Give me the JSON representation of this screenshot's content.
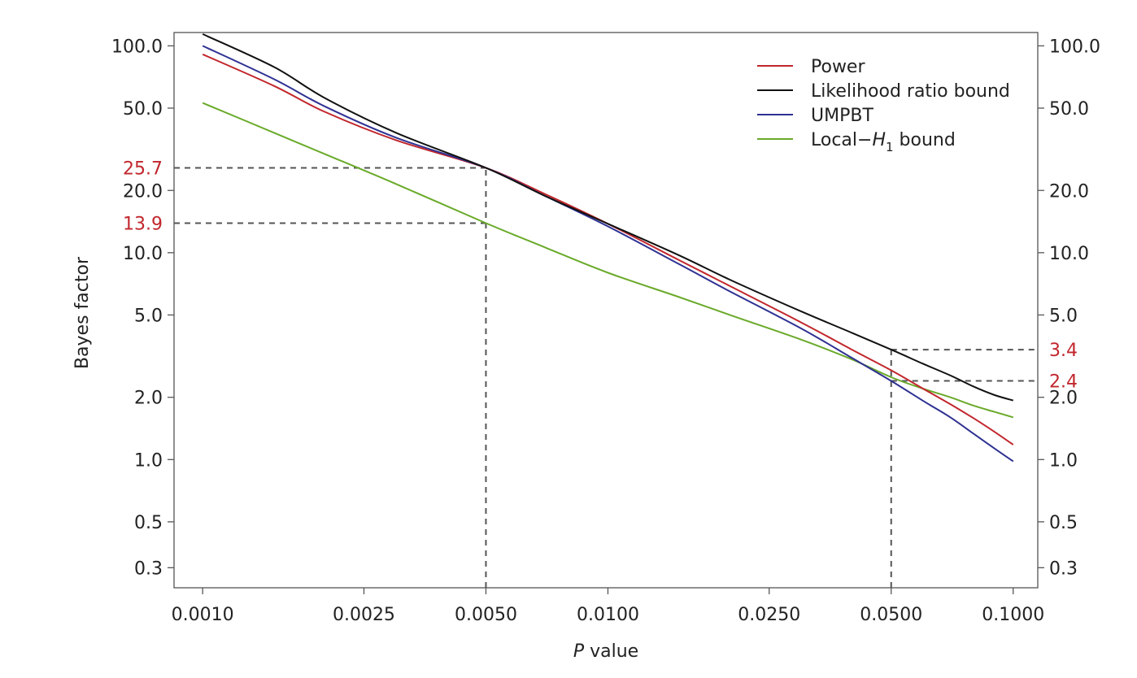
{
  "chart_data": {
    "type": "line",
    "title": "",
    "xlabel": {
      "italic": "P",
      "rest": " value"
    },
    "ylabel": "Bayes factor",
    "x_scale": "log",
    "y_scale": "log",
    "xlim": [
      0.00085,
      0.115
    ],
    "ylim": [
      0.24,
      116
    ],
    "x_ticks": [
      {
        "value": 0.001,
        "label": "0.0010"
      },
      {
        "value": 0.0025,
        "label": "0.0025"
      },
      {
        "value": 0.005,
        "label": "0.0050"
      },
      {
        "value": 0.01,
        "label": "0.0100"
      },
      {
        "value": 0.025,
        "label": "0.0250"
      },
      {
        "value": 0.05,
        "label": "0.0500"
      },
      {
        "value": 0.1,
        "label": "0.1000"
      }
    ],
    "y_ticks": [
      {
        "value": 0.3,
        "label": "0.3"
      },
      {
        "value": 0.5,
        "label": "0.5"
      },
      {
        "value": 1.0,
        "label": "1.0"
      },
      {
        "value": 2.0,
        "label": "2.0"
      },
      {
        "value": 5.0,
        "label": "5.0"
      },
      {
        "value": 10.0,
        "label": "10.0"
      },
      {
        "value": 20.0,
        "label": "20.0"
      },
      {
        "value": 50.0,
        "label": "50.0"
      },
      {
        "value": 100.0,
        "label": "100.0"
      }
    ],
    "legend_position": "top-right",
    "grid": false,
    "series": [
      {
        "name": "Power",
        "color": "#c1272d",
        "points": [
          [
            0.001,
            91
          ],
          [
            0.0015,
            64
          ],
          [
            0.002,
            48
          ],
          [
            0.003,
            35
          ],
          [
            0.005,
            25.7
          ],
          [
            0.007,
            19.2
          ],
          [
            0.01,
            13.8
          ],
          [
            0.015,
            9.2
          ],
          [
            0.02,
            6.9
          ],
          [
            0.03,
            4.6
          ],
          [
            0.04,
            3.4
          ],
          [
            0.05,
            2.7
          ],
          [
            0.06,
            2.2
          ],
          [
            0.07,
            1.85
          ],
          [
            0.08,
            1.58
          ],
          [
            0.09,
            1.36
          ],
          [
            0.1,
            1.18
          ]
        ]
      },
      {
        "name": "Likelihood ratio bound",
        "color": "#111111",
        "points": [
          [
            0.001,
            114
          ],
          [
            0.0015,
            79
          ],
          [
            0.002,
            56
          ],
          [
            0.003,
            38
          ],
          [
            0.005,
            25.7
          ],
          [
            0.007,
            18.8
          ],
          [
            0.01,
            13.8
          ],
          [
            0.015,
            9.7
          ],
          [
            0.02,
            7.4
          ],
          [
            0.03,
            5.2
          ],
          [
            0.04,
            4.1
          ],
          [
            0.05,
            3.4
          ],
          [
            0.06,
            2.9
          ],
          [
            0.07,
            2.55
          ],
          [
            0.08,
            2.25
          ],
          [
            0.09,
            2.05
          ],
          [
            0.1,
            1.93
          ]
        ]
      },
      {
        "name": "UMPBT",
        "color": "#2e3192",
        "points": [
          [
            0.001,
            100
          ],
          [
            0.0015,
            69
          ],
          [
            0.002,
            51
          ],
          [
            0.003,
            36
          ],
          [
            0.005,
            25.7
          ],
          [
            0.007,
            18.8
          ],
          [
            0.01,
            13.4
          ],
          [
            0.015,
            8.8
          ],
          [
            0.02,
            6.5
          ],
          [
            0.03,
            4.3
          ],
          [
            0.04,
            3.1
          ],
          [
            0.05,
            2.4
          ],
          [
            0.06,
            1.92
          ],
          [
            0.07,
            1.6
          ],
          [
            0.08,
            1.33
          ],
          [
            0.09,
            1.13
          ],
          [
            0.1,
            0.98
          ]
        ]
      },
      {
        "name": "Local−H1 bound",
        "name_parts": {
          "before": "Local−",
          "italic": "H",
          "sub": "1",
          "after": " bound"
        },
        "color": "#6aaa2a",
        "points": [
          [
            0.001,
            53
          ],
          [
            0.0015,
            38
          ],
          [
            0.002,
            30
          ],
          [
            0.003,
            21.5
          ],
          [
            0.005,
            13.9
          ],
          [
            0.007,
            10.6
          ],
          [
            0.01,
            8.0
          ],
          [
            0.015,
            6.1
          ],
          [
            0.02,
            5.0
          ],
          [
            0.03,
            3.8
          ],
          [
            0.04,
            3.05
          ],
          [
            0.05,
            2.5
          ],
          [
            0.06,
            2.2
          ],
          [
            0.07,
            2.0
          ],
          [
            0.08,
            1.82
          ],
          [
            0.09,
            1.7
          ],
          [
            0.1,
            1.6
          ]
        ]
      }
    ],
    "reference_lines": [
      {
        "type": "horizontal",
        "y": 25.7,
        "x_to": 0.005,
        "label": "25.7",
        "label_side": "left"
      },
      {
        "type": "horizontal",
        "y": 13.9,
        "x_to": 0.005,
        "label": "13.9",
        "label_side": "left"
      },
      {
        "type": "vertical",
        "x": 0.005,
        "y_to": 25.7
      },
      {
        "type": "vertical",
        "x": 0.05,
        "y_to": 3.4
      },
      {
        "type": "horizontal",
        "y": 3.4,
        "x_from": 0.05,
        "label": "3.4",
        "label_side": "right"
      },
      {
        "type": "horizontal",
        "y": 2.4,
        "x_from": 0.05,
        "label": "2.4",
        "label_side": "right"
      }
    ],
    "annotation_color": "#c1272d"
  }
}
